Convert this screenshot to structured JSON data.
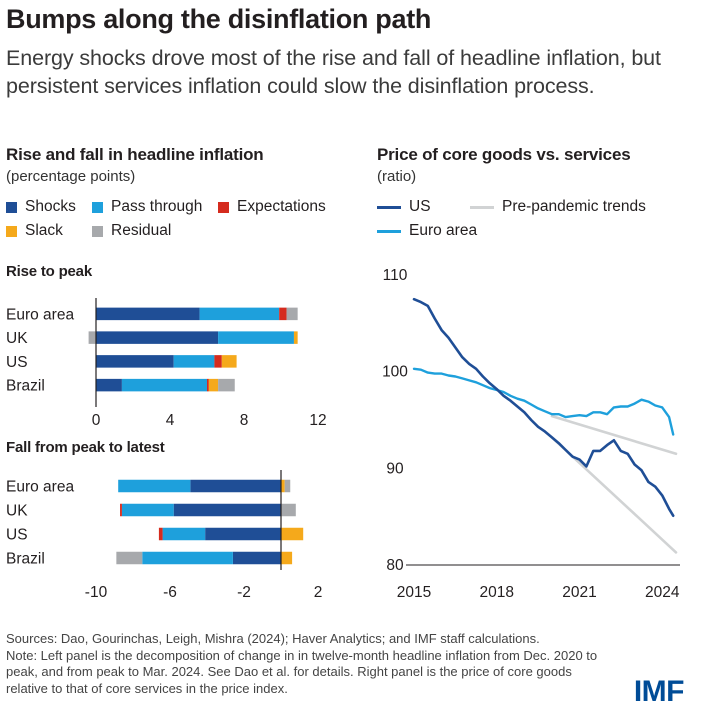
{
  "header": {
    "title": "Bumps along the disinflation path",
    "subtitle": "Energy shocks drove most of the rise and fall of headline inflation, but persistent services inflation could slow the disinflation process."
  },
  "left_panel": {
    "title": "Rise and fall in headline inflation",
    "subtitle": "(percentage points)",
    "legend": [
      {
        "label": "Shocks",
        "color": "#1f4e96"
      },
      {
        "label": "Pass through",
        "color": "#1ea0dc"
      },
      {
        "label": "Expectations",
        "color": "#d52b1e"
      },
      {
        "label": "Slack",
        "color": "#f5a91b"
      },
      {
        "label": "Residual",
        "color": "#a7a9ac"
      }
    ],
    "rise_title": "Rise to peak",
    "fall_title": "Fall from peak to latest"
  },
  "right_panel": {
    "title": "Price of core goods vs. services",
    "subtitle": "(ratio)",
    "legend": [
      {
        "label": "US",
        "color": "#1f4e96"
      },
      {
        "label": "Pre-pandemic trends",
        "color": "#d1d3d4"
      },
      {
        "label": "Euro area",
        "color": "#1ea0dc"
      }
    ]
  },
  "footer": {
    "sources": "Sources: Dao, Gourinchas, Leigh, Mishra (2024); Haver Analytics; and IMF staff calculations.",
    "note": "Note: Left panel is the decomposition of change in in twelve-month headline inflation from Dec. 2020 to peak, and from peak to Mar. 2024. See Dao et al. for details. Right panel is the price of core goods relative to that of core services in the price index.",
    "logo": "IMF"
  },
  "chart_data": [
    {
      "type": "bar",
      "orientation": "horizontal-stacked",
      "title": "Rise to peak",
      "categories": [
        "Euro area",
        "UK",
        "US",
        "Brazil"
      ],
      "xlim": [
        0,
        12
      ],
      "xticks": [
        0,
        4,
        8,
        12
      ],
      "series": [
        {
          "name": "Shocks",
          "values": [
            5.6,
            6.6,
            4.2,
            1.4
          ]
        },
        {
          "name": "Pass through",
          "values": [
            4.3,
            4.1,
            2.2,
            4.6
          ]
        },
        {
          "name": "Expectations",
          "values": [
            0.4,
            0.0,
            0.4,
            0.1
          ]
        },
        {
          "name": "Slack",
          "values": [
            0.0,
            0.2,
            0.8,
            0.5
          ]
        },
        {
          "name": "Residual",
          "values": [
            0.6,
            -0.4,
            0.0,
            0.9
          ]
        }
      ]
    },
    {
      "type": "bar",
      "orientation": "horizontal-stacked",
      "title": "Fall from peak to latest",
      "categories": [
        "Euro area",
        "UK",
        "US",
        "Brazil"
      ],
      "xlim": [
        -10,
        2
      ],
      "xticks": [
        -10,
        -6,
        -2,
        2
      ],
      "series": [
        {
          "name": "Shocks",
          "values": [
            -4.9,
            -5.8,
            -4.1,
            -2.6
          ]
        },
        {
          "name": "Pass through",
          "values": [
            -3.9,
            -2.8,
            -2.3,
            -4.9
          ]
        },
        {
          "name": "Expectations",
          "values": [
            0.0,
            -0.1,
            -0.2,
            0.0
          ]
        },
        {
          "name": "Slack",
          "values": [
            0.2,
            0.0,
            1.2,
            0.6
          ]
        },
        {
          "name": "Residual",
          "values": [
            0.3,
            0.8,
            0.0,
            -1.4
          ]
        }
      ]
    },
    {
      "type": "line",
      "title": "Price of core goods vs. services",
      "ylabel": "(ratio)",
      "xlim": [
        2015,
        2024.5
      ],
      "ylim": [
        80,
        110
      ],
      "xticks": [
        2015,
        2018,
        2021,
        2024
      ],
      "yticks": [
        80,
        90,
        100,
        110
      ],
      "series": [
        {
          "name": "US",
          "x": [
            2015.0,
            2015.25,
            2015.5,
            2015.75,
            2016.0,
            2016.25,
            2016.5,
            2016.75,
            2017.0,
            2017.25,
            2017.5,
            2017.75,
            2018.0,
            2018.25,
            2018.5,
            2018.75,
            2019.0,
            2019.25,
            2019.5,
            2019.75,
            2020.0,
            2020.25,
            2020.5,
            2020.75,
            2021.0,
            2021.25,
            2021.5,
            2021.75,
            2022.0,
            2022.25,
            2022.5,
            2022.75,
            2023.0,
            2023.25,
            2023.5,
            2023.75,
            2024.0,
            2024.25,
            2024.4
          ],
          "y": [
            107.5,
            107.2,
            106.8,
            105.5,
            104.3,
            103.5,
            102.5,
            101.5,
            100.8,
            100.3,
            99.5,
            98.8,
            98.2,
            97.5,
            97.0,
            96.4,
            95.8,
            95.0,
            94.3,
            93.8,
            93.2,
            92.6,
            91.9,
            91.2,
            90.9,
            90.2,
            91.8,
            91.8,
            92.4,
            92.9,
            91.8,
            91.5,
            90.4,
            89.8,
            88.6,
            88.1,
            87.2,
            85.8,
            85.1
          ]
        },
        {
          "name": "Euro area",
          "x": [
            2015.0,
            2015.25,
            2015.5,
            2015.75,
            2016.0,
            2016.25,
            2016.5,
            2016.75,
            2017.0,
            2017.25,
            2017.5,
            2017.75,
            2018.0,
            2018.25,
            2018.5,
            2018.75,
            2019.0,
            2019.25,
            2019.5,
            2019.75,
            2020.0,
            2020.25,
            2020.5,
            2020.75,
            2021.0,
            2021.25,
            2021.5,
            2021.75,
            2022.0,
            2022.25,
            2022.5,
            2022.75,
            2023.0,
            2023.25,
            2023.5,
            2023.75,
            2024.0,
            2024.25,
            2024.4
          ],
          "y": [
            100.3,
            100.2,
            99.9,
            99.8,
            99.8,
            99.6,
            99.5,
            99.3,
            99.1,
            98.9,
            98.6,
            98.3,
            98.1,
            97.9,
            97.5,
            97.2,
            97.0,
            96.6,
            96.2,
            95.9,
            95.6,
            95.6,
            95.3,
            95.4,
            95.5,
            95.4,
            95.8,
            95.8,
            95.6,
            96.3,
            96.4,
            96.4,
            96.7,
            97.1,
            96.9,
            96.5,
            96.3,
            95.3,
            93.5
          ]
        },
        {
          "name": "Pre-pandemic trends",
          "x": [
            2020.0,
            2024.5
          ],
          "y": [
            95.4,
            91.5
          ]
        },
        {
          "name": "Pre-pandemic trends",
          "x": [
            2020.0,
            2024.5
          ],
          "y": [
            93.2,
            81.3
          ]
        }
      ]
    }
  ]
}
